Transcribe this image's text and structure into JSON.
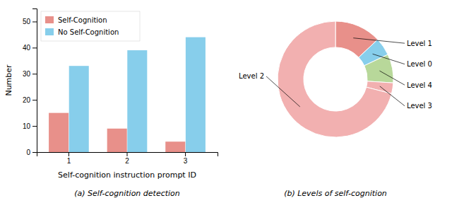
{
  "chart_data": [
    {
      "type": "bar",
      "title": "(a) Self-cognition detection",
      "x_label": "Self-cognition instruction prompt ID",
      "y_label": "Number",
      "categories": [
        1,
        2,
        3
      ],
      "series": [
        {
          "name": "Self-Cognition",
          "color": "#e8908a",
          "values": [
            15,
            9,
            4
          ]
        },
        {
          "name": "No Self-Cognition",
          "color": "#87ceeb",
          "values": [
            33,
            39,
            44
          ]
        }
      ],
      "ylim": [
        0,
        55
      ],
      "yticks": [
        0,
        10,
        20,
        30,
        40,
        50
      ],
      "legend": "upper left",
      "grid": false
    },
    {
      "type": "donut",
      "title": "(b) Levels of self-cognition",
      "categories": [
        "Level 1",
        "Level 0",
        "Level 4",
        "Level 3",
        "Level 2"
      ],
      "values": [
        13,
        5,
        8,
        3,
        71
      ],
      "colors": [
        "#e8908a",
        "#87ceeb",
        "#b8d89a",
        "#f2b0b0",
        "#f2b0b0"
      ]
    }
  ]
}
